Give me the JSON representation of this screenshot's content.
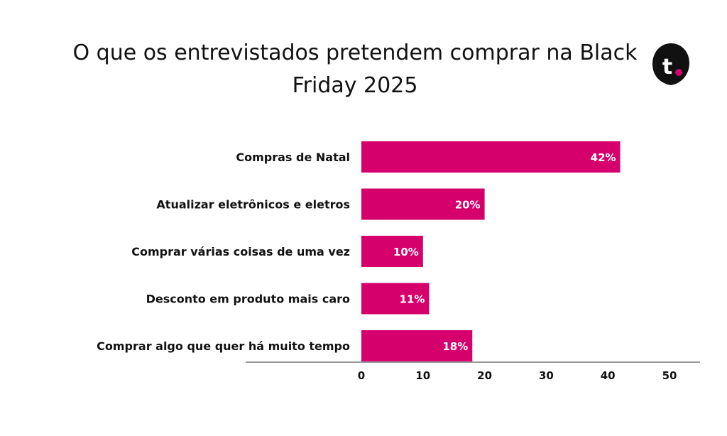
{
  "colors": {
    "bar": "#d6006d",
    "axis": "#9a9a9a",
    "text": "#111111",
    "logo_bg": "#111111",
    "logo_dot": "#d6006d"
  },
  "logo": {
    "text": "t.",
    "icon": "brand-logo-icon"
  },
  "chart_data": {
    "type": "bar",
    "orientation": "horizontal",
    "title": "O que os entrevistados pretendem comprar na Black Friday 2025",
    "categories": [
      "Compras de Natal",
      "Atualizar eletrônicos e eletros",
      "Comprar várias coisas de uma vez",
      "Desconto em produto mais caro",
      "Comprar algo que quer há muito tempo"
    ],
    "values": [
      42,
      20,
      10,
      11,
      18
    ],
    "data_labels": [
      "42%",
      "20%",
      "10%",
      "11%",
      "18%"
    ],
    "xlim": [
      0,
      50
    ],
    "xticks": [
      0,
      10,
      20,
      30,
      40,
      50
    ],
    "xlabel": "",
    "ylabel": "",
    "grid": false,
    "legend": "none"
  }
}
